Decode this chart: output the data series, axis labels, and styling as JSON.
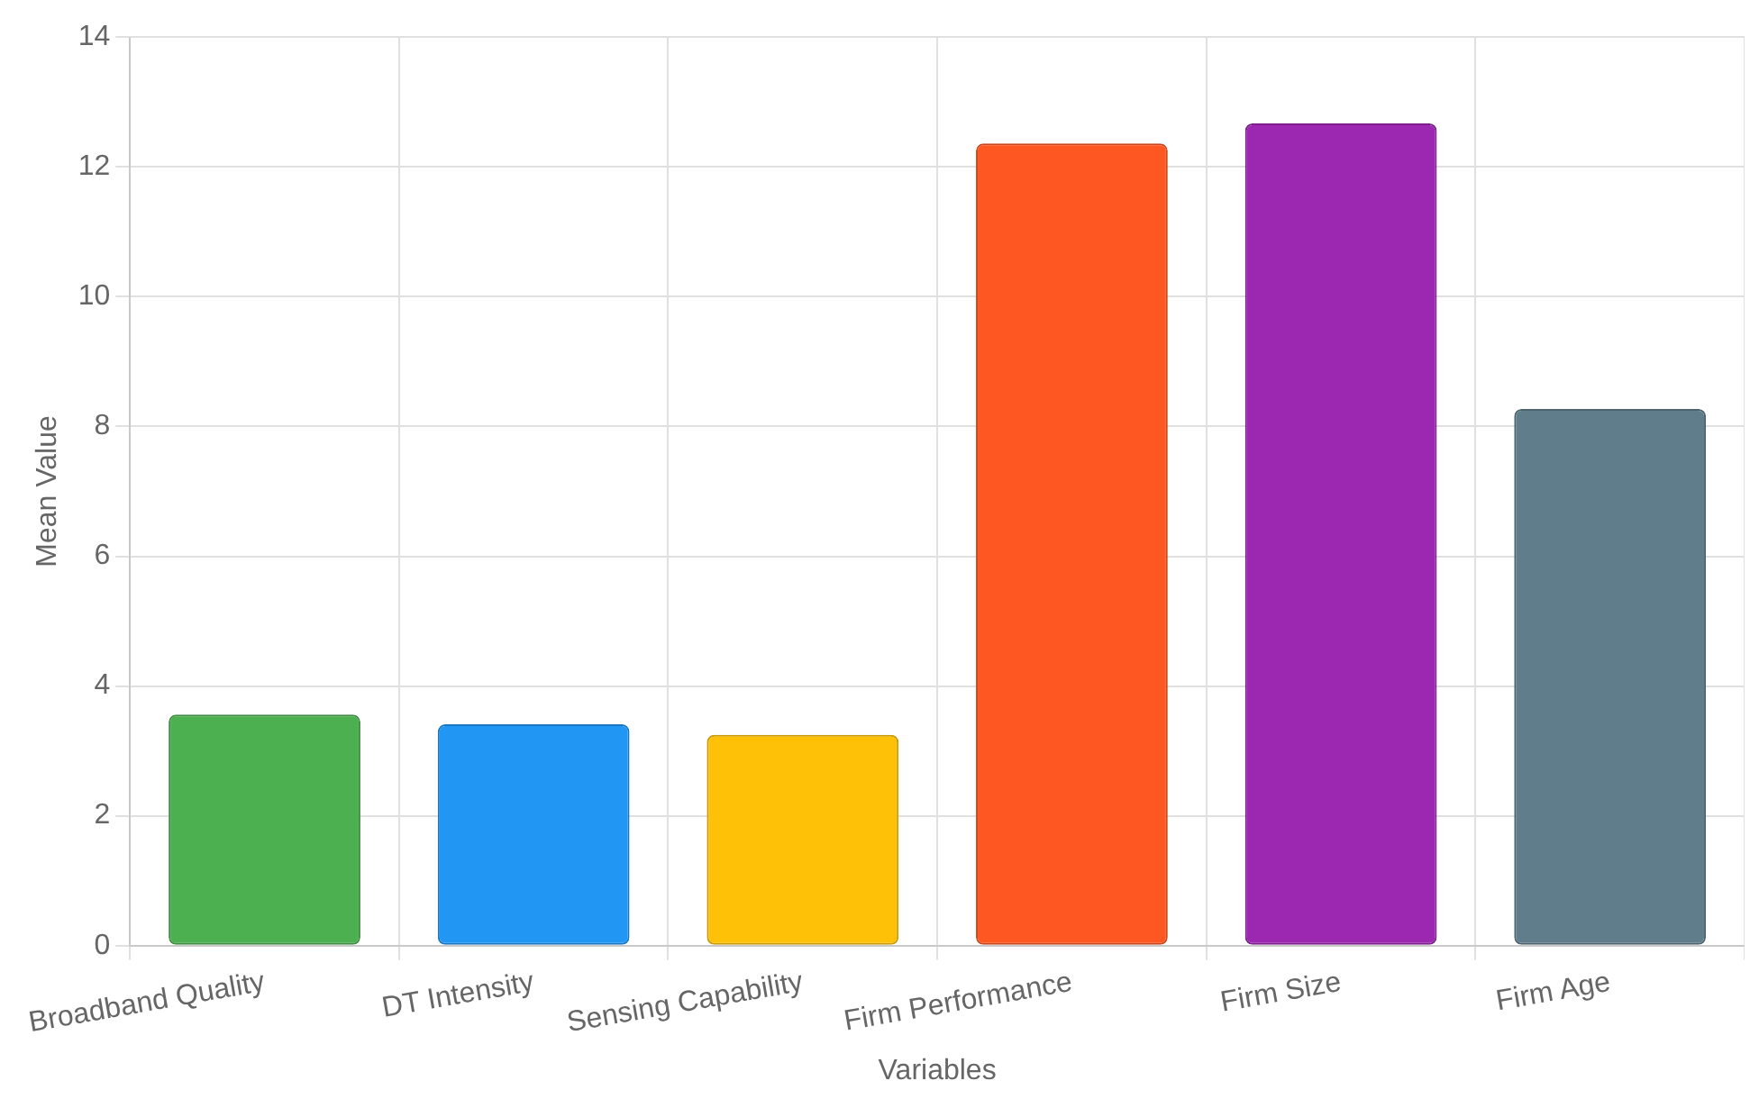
{
  "chart_data": {
    "type": "bar",
    "xlabel": "Variables",
    "ylabel": "Mean Value",
    "categories": [
      "Broadband Quality",
      "DT Intensity",
      "Sensing Capability",
      "Firm Performance",
      "Firm Size",
      "Firm Age"
    ],
    "values": [
      3.56,
      3.41,
      3.25,
      12.36,
      12.67,
      8.27
    ],
    "colors": [
      "#4caf50",
      "#2196f3",
      "#ffc107",
      "#ff5722",
      "#9c27b0",
      "#607d8b"
    ],
    "ylim": [
      0,
      14
    ],
    "yticks": [
      0,
      2,
      4,
      6,
      8,
      10,
      12,
      14
    ],
    "grid": true,
    "legend": false
  }
}
